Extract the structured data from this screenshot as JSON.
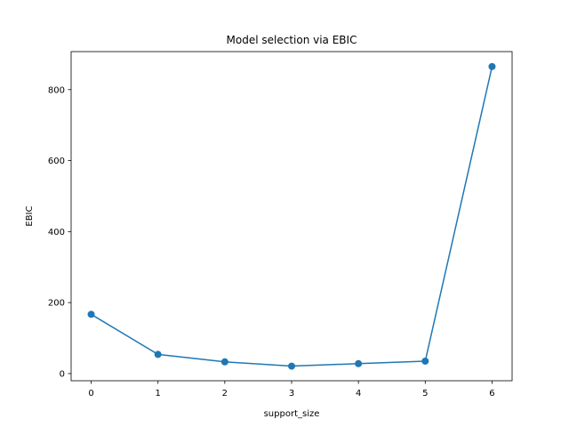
{
  "chart_data": {
    "type": "line",
    "title": "Model selection via EBIC",
    "xlabel": "support_size",
    "ylabel": "EBIC",
    "x": [
      0,
      1,
      2,
      3,
      4,
      5,
      6
    ],
    "series": [
      {
        "values": [
          167,
          54,
          33,
          21,
          28,
          35,
          865
        ],
        "color": "#1f77b4",
        "marker": "circle"
      }
    ],
    "xticks": [
      "0",
      "1",
      "2",
      "3",
      "4",
      "5",
      "6"
    ],
    "yticks": [
      "0",
      "200",
      "400",
      "600",
      "800"
    ],
    "xlim": [
      -0.3,
      6.3
    ],
    "ylim": [
      -20.2,
      907.2
    ],
    "grid": false,
    "legend": "none"
  }
}
